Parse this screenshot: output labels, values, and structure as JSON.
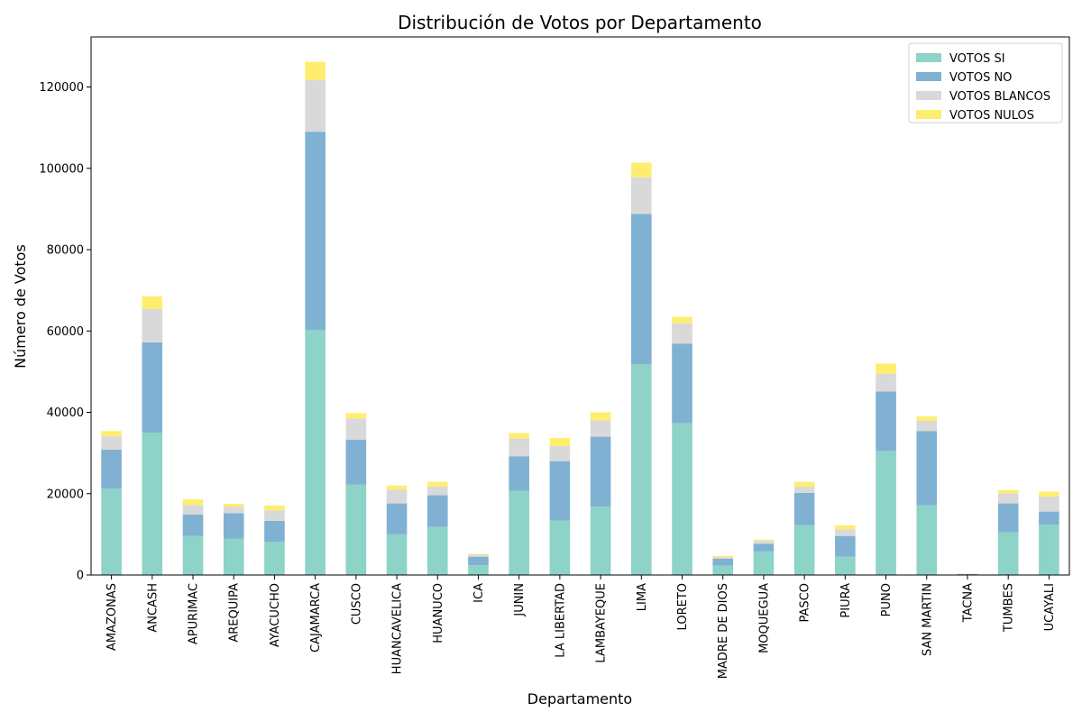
{
  "chart_data": {
    "type": "bar",
    "stacked": true,
    "title": "Distribución de Votos por Departamento",
    "xlabel": "Departamento",
    "ylabel": "Número de Votos",
    "ylim": [
      0,
      132300
    ],
    "yticks": [
      0,
      20000,
      40000,
      60000,
      80000,
      100000,
      120000
    ],
    "grid": false,
    "legend_position": "top-right",
    "categories": [
      "AMAZONAS",
      "ANCASH",
      "APURIMAC",
      "AREQUIPA",
      "AYACUCHO",
      "CAJAMARCA",
      "CUSCO",
      "HUANCAVELICA",
      "HUANUCO",
      "ICA",
      "JUNIN",
      "LA LIBERTAD",
      "LAMBAYEQUE",
      "LIMA",
      "LORETO",
      "MADRE DE DIOS",
      "MOQUEGUA",
      "PASCO",
      "PIURA",
      "PUNO",
      "SAN MARTIN",
      "TACNA",
      "TUMBES",
      "UCAYALI"
    ],
    "series": [
      {
        "name": "VOTOS SI",
        "color": "#8dd3c7",
        "values": [
          21200,
          35000,
          9600,
          8900,
          8200,
          60200,
          22200,
          10000,
          11800,
          2400,
          20700,
          13400,
          16800,
          51800,
          37300,
          2300,
          5800,
          12300,
          4500,
          30500,
          17100,
          100,
          10500,
          12400
        ]
      },
      {
        "name": "VOTOS NO",
        "color": "#80b1d3",
        "values": [
          9600,
          22200,
          5300,
          6300,
          5100,
          48800,
          11100,
          7600,
          7800,
          2100,
          8500,
          14600,
          17200,
          37000,
          19600,
          1700,
          1900,
          7900,
          5100,
          14600,
          18300,
          150,
          7100,
          3200
        ]
      },
      {
        "name": "VOTOS BLANCOS",
        "color": "#d9d9d9",
        "values": [
          3300,
          8200,
          2300,
          1600,
          2600,
          12700,
          5200,
          3400,
          2100,
          500,
          4400,
          3700,
          4000,
          9000,
          5000,
          400,
          700,
          1500,
          1600,
          4400,
          2500,
          50,
          2500,
          3700
        ]
      },
      {
        "name": "VOTOS NULOS",
        "color": "#ffed6f",
        "values": [
          1300,
          3100,
          1400,
          700,
          1200,
          4500,
          1300,
          1000,
          1200,
          200,
          1300,
          2000,
          2000,
          3600,
          1600,
          300,
          300,
          1200,
          1000,
          2500,
          1100,
          30,
          800,
          1200
        ]
      }
    ]
  }
}
